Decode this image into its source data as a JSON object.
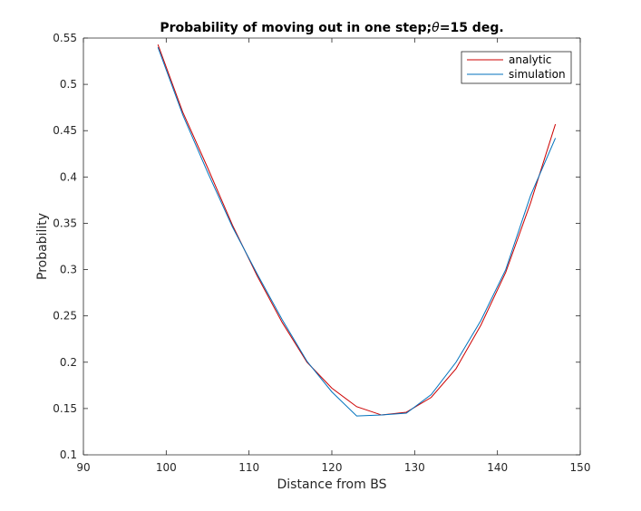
{
  "chart_data": {
    "type": "line",
    "title": "Probability of moving out in one step;θ=15 deg.",
    "title_parts": [
      "Probability of moving out in one step;",
      "θ",
      "=15 deg."
    ],
    "xlabel": "Distance from BS",
    "ylabel": "Probability",
    "xlim": [
      90,
      150
    ],
    "ylim": [
      0.1,
      0.55
    ],
    "xticks": [
      90,
      100,
      110,
      120,
      130,
      140,
      150
    ],
    "xtick_labels": [
      "90",
      "100",
      "110",
      "120",
      "130",
      "140",
      "150"
    ],
    "yticks": [
      0.1,
      0.15,
      0.2,
      0.25,
      0.3,
      0.35,
      0.4,
      0.45,
      0.5,
      0.55
    ],
    "ytick_labels": [
      "0.1",
      "0.15",
      "0.2",
      "0.25",
      "0.3",
      "0.35",
      "0.4",
      "0.45",
      "0.5",
      "0.55"
    ],
    "grid": false,
    "legend_location": "top-right",
    "series": [
      {
        "name": "analytic",
        "color": "#cc0000",
        "x": [
          99,
          102,
          105,
          108,
          111,
          114,
          117,
          120,
          123,
          126,
          129,
          132,
          135,
          138,
          141,
          144,
          147
        ],
        "y": [
          0.543,
          0.47,
          0.41,
          0.348,
          0.293,
          0.243,
          0.2,
          0.172,
          0.152,
          0.143,
          0.146,
          0.162,
          0.193,
          0.24,
          0.297,
          0.372,
          0.457
        ]
      },
      {
        "name": "simulation",
        "color": "#0072bd",
        "x": [
          99,
          102,
          105,
          108,
          111,
          114,
          117,
          120,
          123,
          126,
          129,
          132,
          135,
          138,
          141,
          144,
          147
        ],
        "y": [
          0.54,
          0.467,
          0.405,
          0.346,
          0.295,
          0.246,
          0.201,
          0.168,
          0.142,
          0.143,
          0.145,
          0.165,
          0.2,
          0.245,
          0.3,
          0.38,
          0.442
        ]
      }
    ]
  }
}
